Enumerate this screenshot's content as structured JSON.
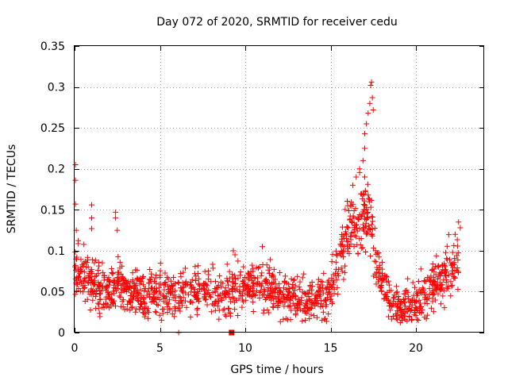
{
  "chart_data": {
    "type": "scatter",
    "title": "Day 072 of 2020, SRMTID for receiver cedu",
    "xlabel": "GPS time / hours",
    "ylabel": "SRMTID / TECUs",
    "xlim": [
      0,
      24
    ],
    "ylim": [
      0,
      0.35
    ],
    "x_ticks": [
      0,
      5,
      10,
      15,
      20
    ],
    "x_tick_labels": [
      "0",
      "5",
      "10",
      "15",
      "20"
    ],
    "y_ticks": [
      0,
      0.05,
      0.1,
      0.15,
      0.2,
      0.25,
      0.3,
      0.35
    ],
    "y_tick_labels": [
      "0",
      "0.05",
      "0.1",
      "0.15",
      "0.2",
      "0.25",
      "0.3",
      "0.35"
    ],
    "grid": true,
    "series": [
      {
        "name": "SRMTID",
        "marker": "plus",
        "color": "#ff0000",
        "profile": [
          {
            "x": 0.0,
            "y": 0.08
          },
          {
            "x": 0.5,
            "y": 0.07
          },
          {
            "x": 1.0,
            "y": 0.065
          },
          {
            "x": 1.5,
            "y": 0.055
          },
          {
            "x": 2.0,
            "y": 0.05
          },
          {
            "x": 2.5,
            "y": 0.06
          },
          {
            "x": 3.0,
            "y": 0.05
          },
          {
            "x": 4.0,
            "y": 0.048
          },
          {
            "x": 5.0,
            "y": 0.052
          },
          {
            "x": 6.0,
            "y": 0.048
          },
          {
            "x": 7.0,
            "y": 0.05
          },
          {
            "x": 8.0,
            "y": 0.05
          },
          {
            "x": 9.0,
            "y": 0.045
          },
          {
            "x": 10.0,
            "y": 0.055
          },
          {
            "x": 11.0,
            "y": 0.06
          },
          {
            "x": 12.0,
            "y": 0.045
          },
          {
            "x": 13.0,
            "y": 0.042
          },
          {
            "x": 14.0,
            "y": 0.04
          },
          {
            "x": 15.0,
            "y": 0.05
          },
          {
            "x": 15.5,
            "y": 0.09
          },
          {
            "x": 16.0,
            "y": 0.12
          },
          {
            "x": 16.5,
            "y": 0.13
          },
          {
            "x": 17.0,
            "y": 0.14
          },
          {
            "x": 17.3,
            "y": 0.15
          },
          {
            "x": 17.5,
            "y": 0.11
          },
          {
            "x": 18.0,
            "y": 0.06
          },
          {
            "x": 18.5,
            "y": 0.035
          },
          {
            "x": 19.0,
            "y": 0.03
          },
          {
            "x": 20.0,
            "y": 0.035
          },
          {
            "x": 20.5,
            "y": 0.04
          },
          {
            "x": 21.0,
            "y": 0.06
          },
          {
            "x": 21.5,
            "y": 0.065
          },
          {
            "x": 22.0,
            "y": 0.075
          },
          {
            "x": 22.5,
            "y": 0.09
          }
        ],
        "spread": 0.018,
        "highlights": [
          {
            "x": 0.05,
            "y": 0.205
          },
          {
            "x": 0.05,
            "y": 0.186
          },
          {
            "x": 0.05,
            "y": 0.157
          },
          {
            "x": 0.1,
            "y": 0.125
          },
          {
            "x": 1.0,
            "y": 0.156
          },
          {
            "x": 1.0,
            "y": 0.14
          },
          {
            "x": 1.0,
            "y": 0.127
          },
          {
            "x": 2.4,
            "y": 0.147
          },
          {
            "x": 2.4,
            "y": 0.14
          },
          {
            "x": 2.5,
            "y": 0.125
          },
          {
            "x": 16.3,
            "y": 0.18
          },
          {
            "x": 16.5,
            "y": 0.19
          },
          {
            "x": 16.7,
            "y": 0.2
          },
          {
            "x": 16.9,
            "y": 0.21
          },
          {
            "x": 17.0,
            "y": 0.225
          },
          {
            "x": 17.0,
            "y": 0.243
          },
          {
            "x": 17.1,
            "y": 0.255
          },
          {
            "x": 17.2,
            "y": 0.268
          },
          {
            "x": 17.3,
            "y": 0.28
          },
          {
            "x": 17.35,
            "y": 0.302
          },
          {
            "x": 17.4,
            "y": 0.306
          },
          {
            "x": 17.45,
            "y": 0.287
          },
          {
            "x": 17.5,
            "y": 0.272
          },
          {
            "x": 17.0,
            "y": 0.19
          },
          {
            "x": 17.2,
            "y": 0.168
          },
          {
            "x": 16.0,
            "y": 0.155
          },
          {
            "x": 22.5,
            "y": 0.135
          },
          {
            "x": 22.6,
            "y": 0.128
          },
          {
            "x": 22.3,
            "y": 0.12
          },
          {
            "x": 9.3,
            "y": 0.1
          },
          {
            "x": 9.4,
            "y": 0.095
          },
          {
            "x": 11.0,
            "y": 0.105
          },
          {
            "x": 6.1,
            "y": 0.0
          }
        ],
        "square_markers": [
          {
            "x": 9.2,
            "y": 0.0
          }
        ],
        "gaps": [
          [
            5.95,
            6.05
          ]
        ]
      }
    ]
  }
}
